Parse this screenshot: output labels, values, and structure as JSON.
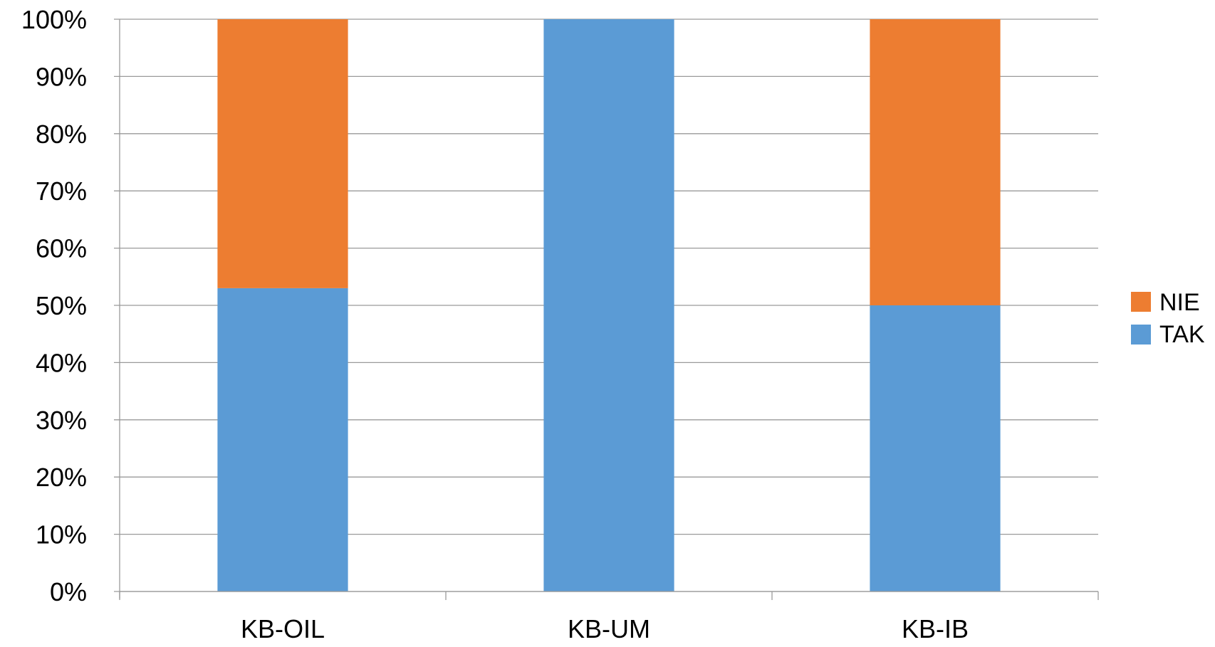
{
  "chart_data": {
    "type": "bar",
    "stacked": true,
    "percent_stacked": true,
    "categories": [
      "KB-OIL",
      "KB-UM",
      "KB-IB"
    ],
    "series": [
      {
        "name": "TAK",
        "color": "#5B9BD5",
        "values": [
          53,
          100,
          50
        ]
      },
      {
        "name": "NIE",
        "color": "#ED7D31",
        "values": [
          47,
          0,
          50
        ]
      }
    ],
    "ylim": [
      0,
      100
    ],
    "yticks": [
      "0%",
      "10%",
      "20%",
      "30%",
      "40%",
      "50%",
      "60%",
      "70%",
      "80%",
      "90%",
      "100%"
    ],
    "grid": true,
    "legend_position": "right",
    "legend": [
      {
        "name": "NIE",
        "color": "#ED7D31"
      },
      {
        "name": "TAK",
        "color": "#5B9BD5"
      }
    ]
  }
}
